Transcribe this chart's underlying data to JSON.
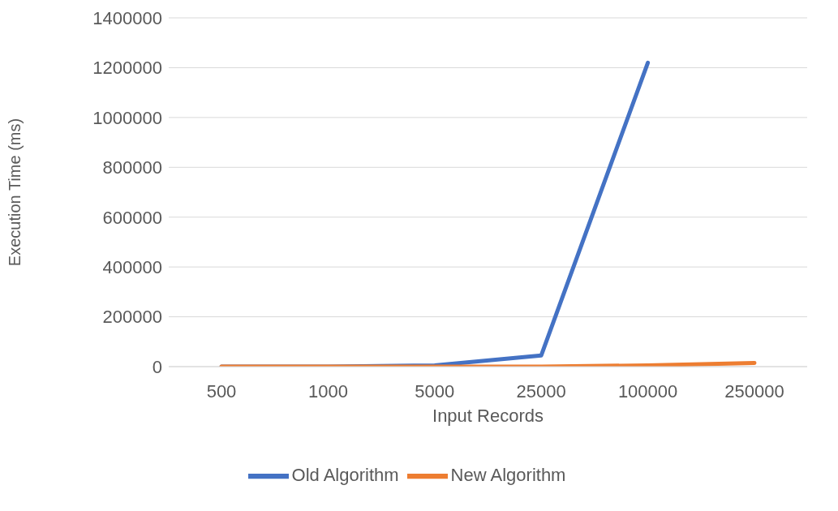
{
  "chart_data": {
    "type": "line",
    "xlabel": "Input Records",
    "ylabel": "Execution Time (ms)",
    "categories": [
      "500",
      "1000",
      "5000",
      "25000",
      "100000",
      "250000"
    ],
    "series": [
      {
        "name": "Old Algorithm",
        "color": "#4472c4",
        "values": [
          0,
          0,
          5000,
          45000,
          1220000,
          null
        ]
      },
      {
        "name": "New Algorithm",
        "color": "#ed7d31",
        "values": [
          0,
          0,
          0,
          0,
          5000,
          15000
        ]
      }
    ],
    "ylim": [
      0,
      1400000
    ],
    "yticks": [
      0,
      200000,
      400000,
      600000,
      800000,
      1000000,
      1200000,
      1400000
    ],
    "grid": "y",
    "legend": "bottom",
    "marker": "none",
    "line_style": "solid"
  }
}
